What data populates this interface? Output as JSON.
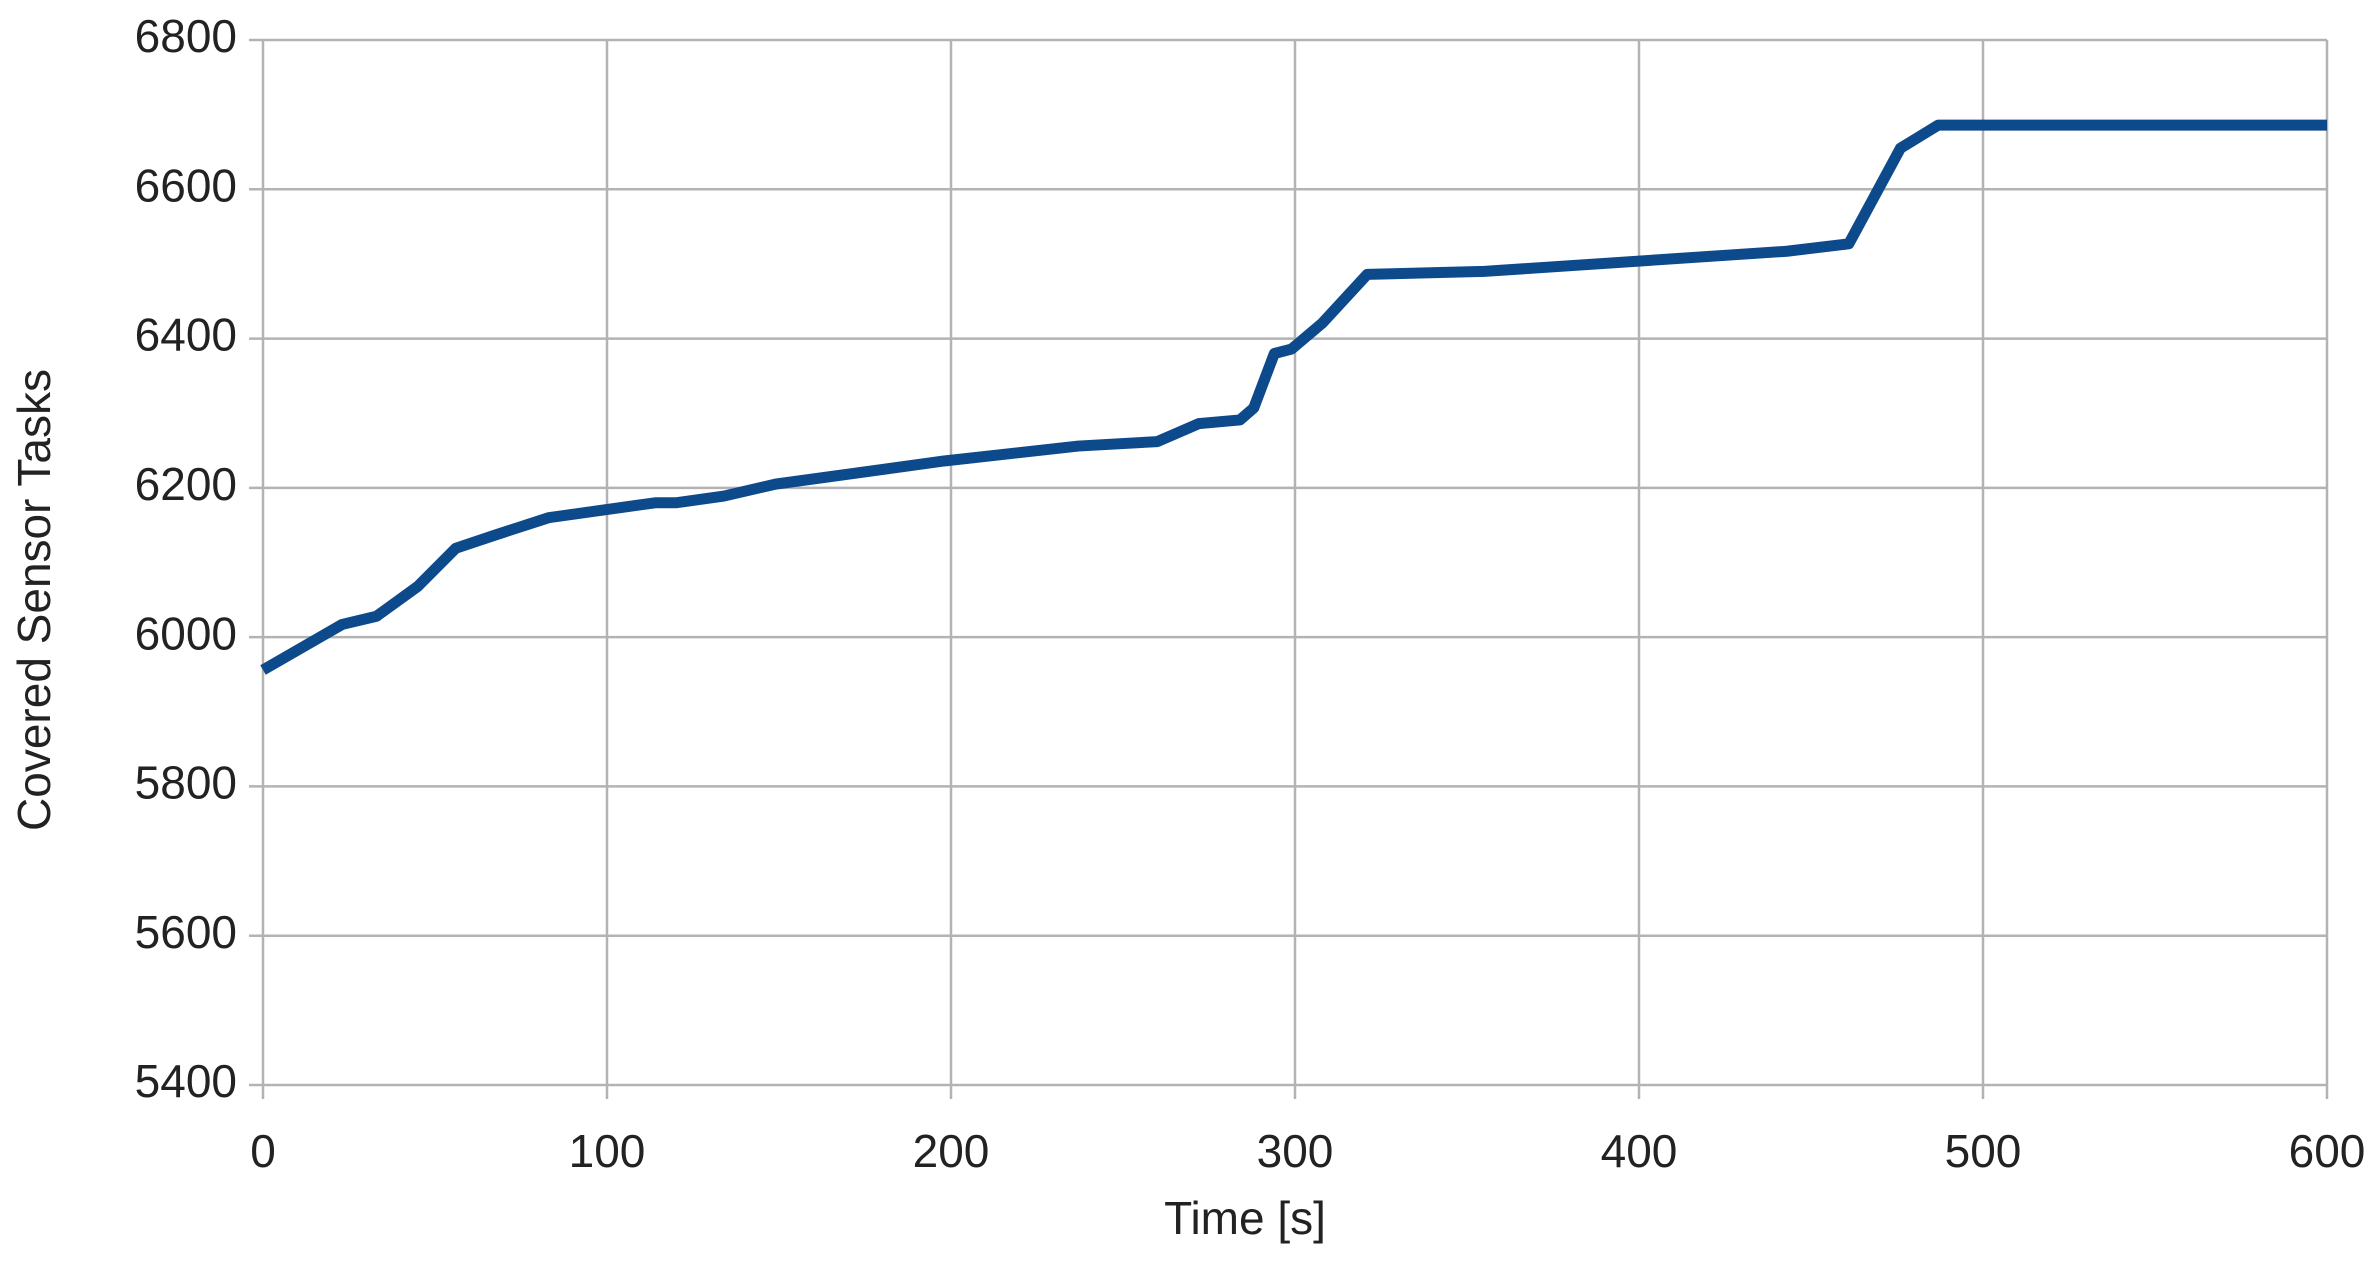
{
  "chart_data": {
    "type": "line",
    "x_label": "Time [s]",
    "y_label": "Covered Sensor Tasks",
    "x": [
      0,
      23,
      33,
      45,
      56,
      67,
      83,
      114,
      120,
      134,
      149,
      198,
      237,
      260,
      272,
      284,
      288,
      294,
      299,
      308,
      321,
      355,
      443,
      461,
      476,
      487,
      600
    ],
    "series": [
      {
        "color": "#0d4a8b",
        "values": [
          5956,
          6017,
          6028,
          6068,
          6119,
          6136,
          6160,
          6180,
          6180,
          6189,
          6205,
          6236,
          6256,
          6262,
          6286,
          6291,
          6307,
          6380,
          6386,
          6421,
          6486,
          6490,
          6517,
          6527,
          6655,
          6686,
          6686
        ]
      }
    ],
    "xlim": [
      0,
      600
    ],
    "xticks": [
      0,
      100,
      200,
      300,
      400,
      500,
      600
    ],
    "ylim": [
      5400,
      6800
    ],
    "yticks": [
      5400,
      5600,
      5800,
      6000,
      6200,
      6400,
      6600,
      6800
    ],
    "grid": true
  }
}
